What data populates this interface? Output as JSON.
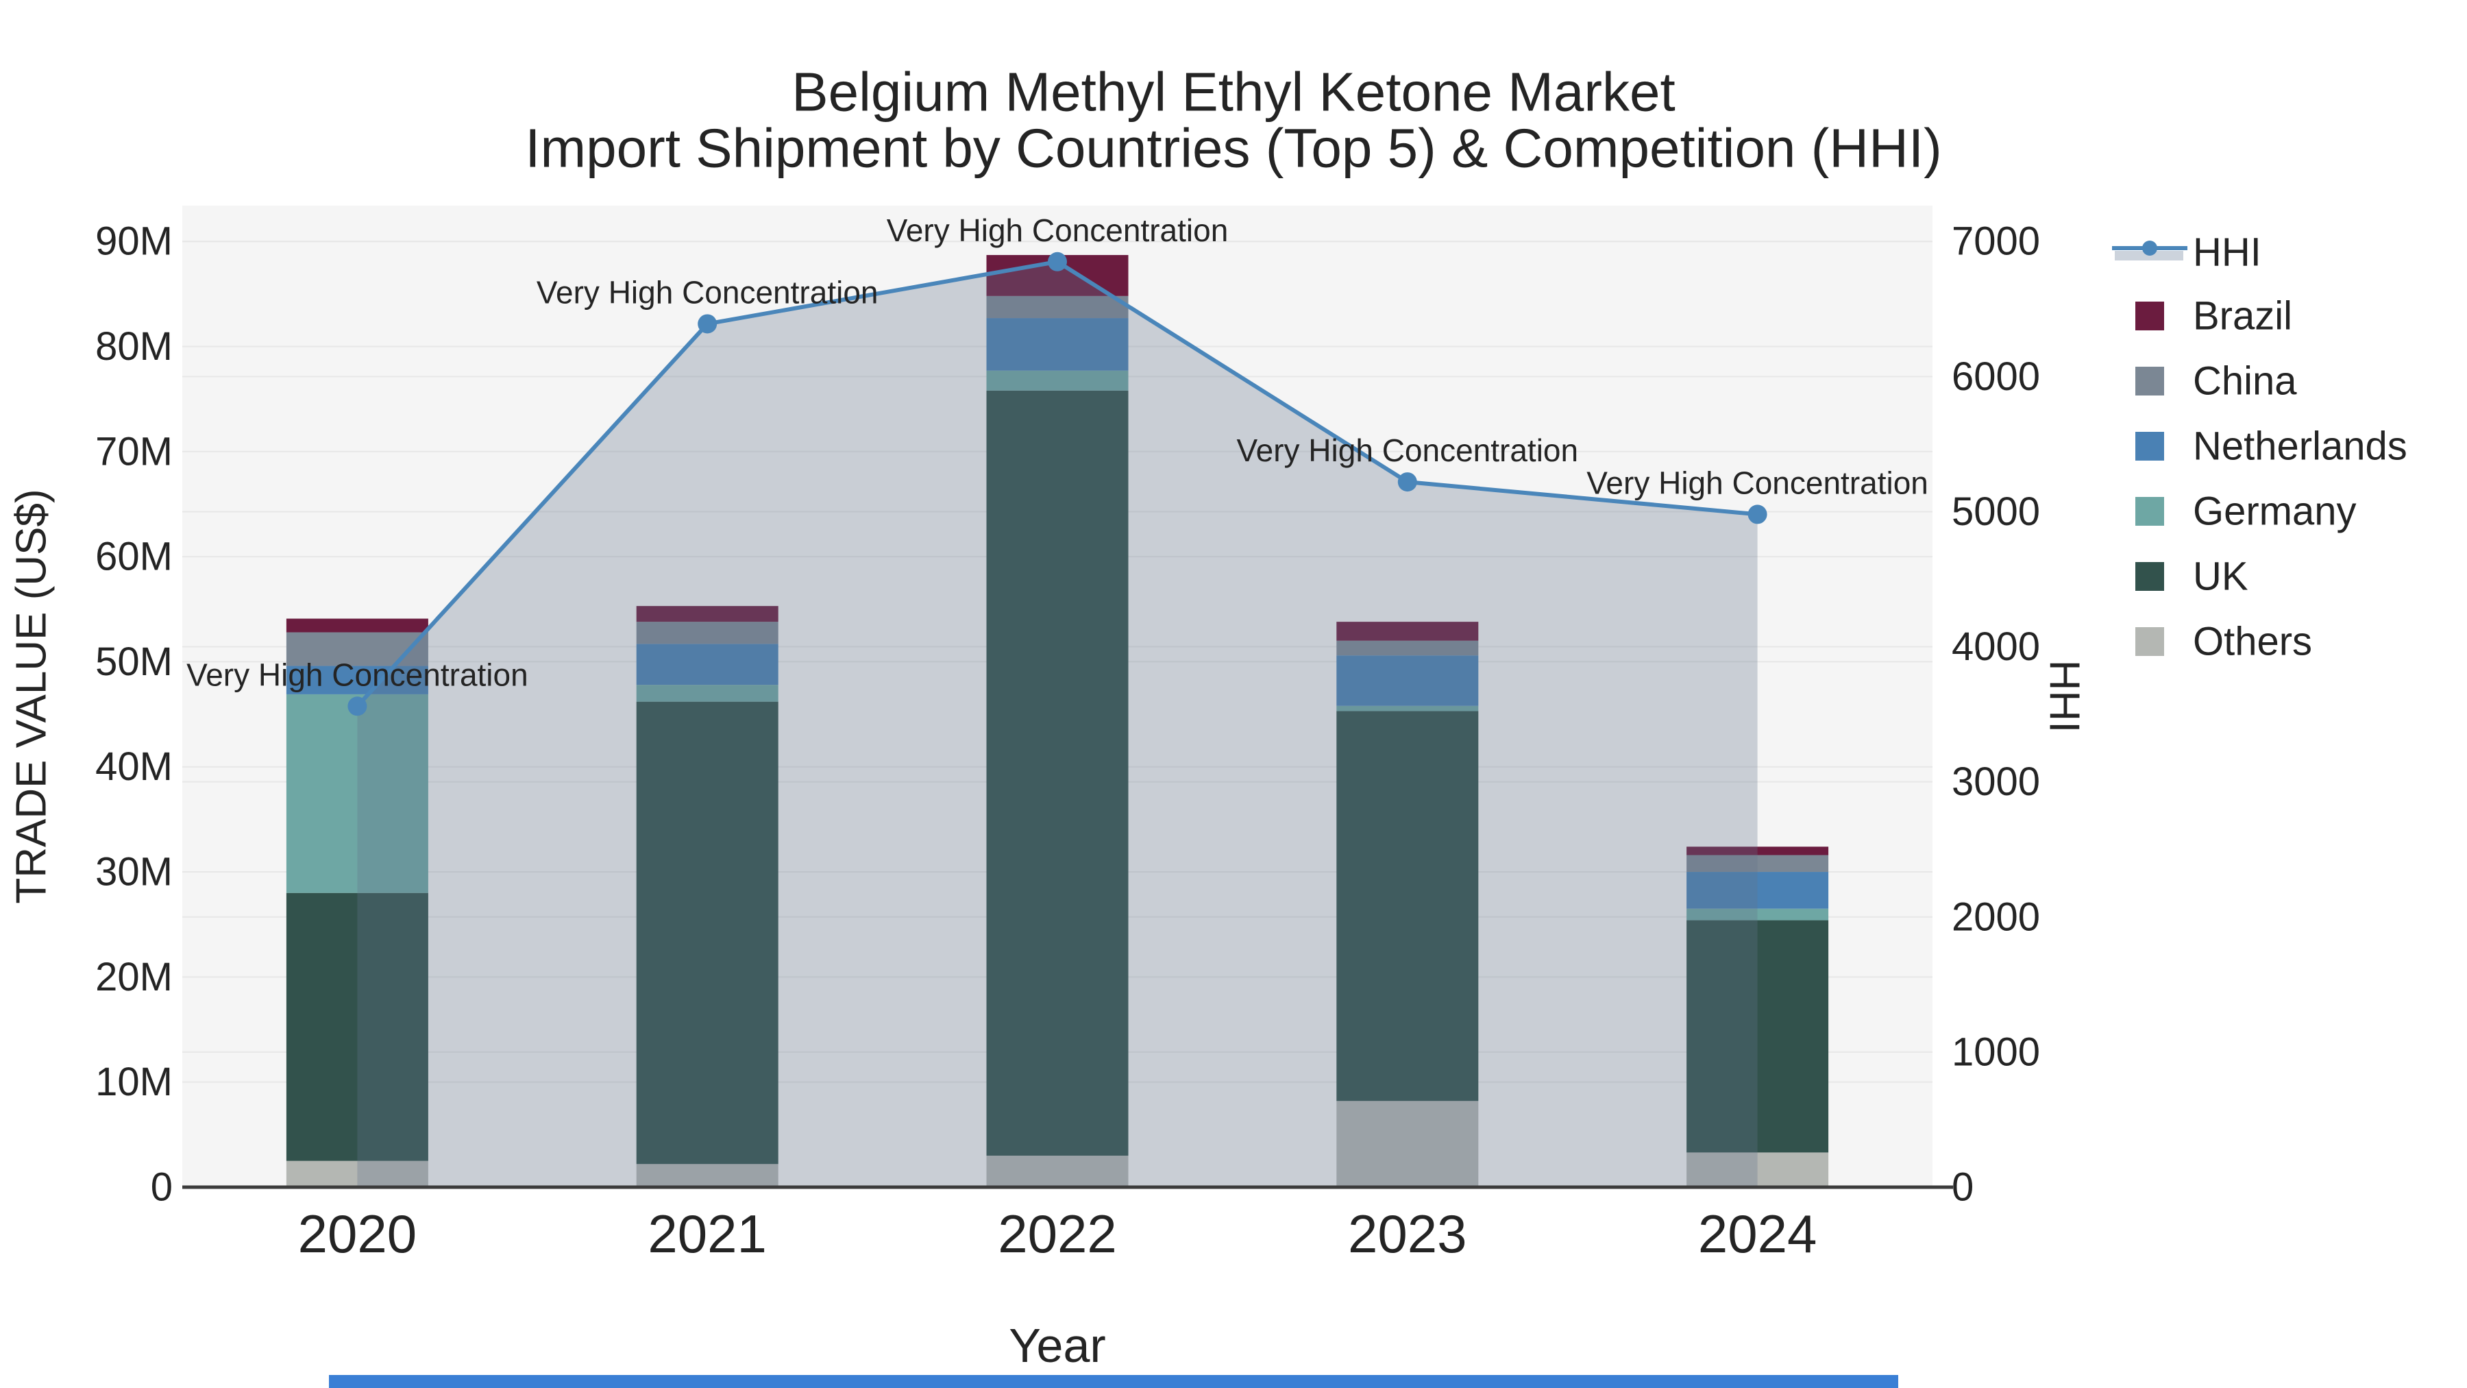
{
  "title": {
    "line1": "Belgium Methyl Ethyl Ketone Market",
    "line2": "Import Shipment by Countries (Top 5) & Competition (HHI)"
  },
  "axes": {
    "left": {
      "title": "TRADE VALUE (US$)",
      "tick_labels": [
        "0",
        "10M",
        "20M",
        "30M",
        "40M",
        "50M",
        "60M",
        "70M",
        "80M",
        "90M"
      ],
      "tick_values_musd": [
        0,
        10,
        20,
        30,
        40,
        50,
        60,
        70,
        80,
        90
      ],
      "range_musd": [
        0,
        93.4
      ]
    },
    "right": {
      "title": "HHI",
      "tick_labels": [
        "0",
        "1000",
        "2000",
        "3000",
        "4000",
        "5000",
        "6000",
        "7000"
      ],
      "tick_values": [
        0,
        1000,
        2000,
        3000,
        4000,
        5000,
        6000,
        7000
      ],
      "range": [
        0,
        7265
      ]
    },
    "bottom": {
      "title": "Year",
      "tick_labels": [
        "2020",
        "2021",
        "2022",
        "2023",
        "2024"
      ]
    }
  },
  "legend": {
    "items": [
      {
        "label": "HHI",
        "type": "line",
        "color": "#4a86ba",
        "band_color": "#ccd3dc"
      },
      {
        "label": "Brazil",
        "type": "swatch",
        "color": "#6b1c3f"
      },
      {
        "label": "China",
        "type": "swatch",
        "color": "#7b8794"
      },
      {
        "label": "Netherlands",
        "type": "swatch",
        "color": "#4a81b4"
      },
      {
        "label": "Germany",
        "type": "swatch",
        "color": "#6ea7a4"
      },
      {
        "label": "UK",
        "type": "swatch",
        "color": "#32524c"
      },
      {
        "label": "Others",
        "type": "swatch",
        "color": "#b4b7b3"
      }
    ]
  },
  "chart_data": {
    "type": "bar",
    "subtype": "stacked-bars-with-line-overlay",
    "categories": [
      "2020",
      "2021",
      "2022",
      "2023",
      "2024"
    ],
    "units": "USD millions (trade value), index points (HHI)",
    "stack_order_bottom_to_top": [
      "Others",
      "UK",
      "Germany",
      "Netherlands",
      "China",
      "Brazil"
    ],
    "series": [
      {
        "name": "Others",
        "color": "#b4b7b3",
        "values_musd": [
          2.5,
          2.2,
          3.0,
          8.2,
          3.3
        ]
      },
      {
        "name": "UK",
        "color": "#32524c",
        "values_musd": [
          25.5,
          44.0,
          72.8,
          37.1,
          22.1
        ]
      },
      {
        "name": "Germany",
        "color": "#6ea7a4",
        "values_musd": [
          18.9,
          1.6,
          1.9,
          0.5,
          1.1
        ]
      },
      {
        "name": "Netherlands",
        "color": "#4a81b4",
        "values_musd": [
          2.7,
          3.9,
          5.0,
          4.8,
          3.5
        ]
      },
      {
        "name": "China",
        "color": "#7b8794",
        "values_musd": [
          3.2,
          2.1,
          2.1,
          1.4,
          1.6
        ]
      },
      {
        "name": "Brazil",
        "color": "#6b1c3f",
        "values_musd": [
          1.3,
          1.5,
          3.9,
          1.8,
          0.8
        ]
      }
    ],
    "bar_totals_musd": [
      54.1,
      55.3,
      88.7,
      53.8,
      32.4
    ],
    "hhi_line": {
      "name": "HHI",
      "color": "#4a86ba",
      "area_fill": "rgba(100,115,140,0.30)",
      "values": [
        3560,
        6390,
        6850,
        5220,
        4980
      ]
    },
    "annotations": [
      {
        "category": "2020",
        "text": "Very High Concentration"
      },
      {
        "category": "2021",
        "text": "Very High Concentration"
      },
      {
        "category": "2022",
        "text": "Very High Concentration"
      },
      {
        "category": "2023",
        "text": "Very High Concentration"
      },
      {
        "category": "2024",
        "text": "Very High Concentration"
      }
    ],
    "title": "Belgium Methyl Ethyl Ketone Market Import Shipment by Countries (Top 5) & Competition (HHI)",
    "xlabel": "Year",
    "ylabel_left": "TRADE VALUE (US$)",
    "ylabel_right": "HHI",
    "grid": true,
    "legend_position": "right"
  },
  "style": {
    "plot_bgcolor": "#f5f5f5",
    "grid_color": "#e7e7e7",
    "axis_line_color": "#3c3c3c",
    "text_color": "#242424",
    "scrollbar_color": "#3a7fd5"
  }
}
